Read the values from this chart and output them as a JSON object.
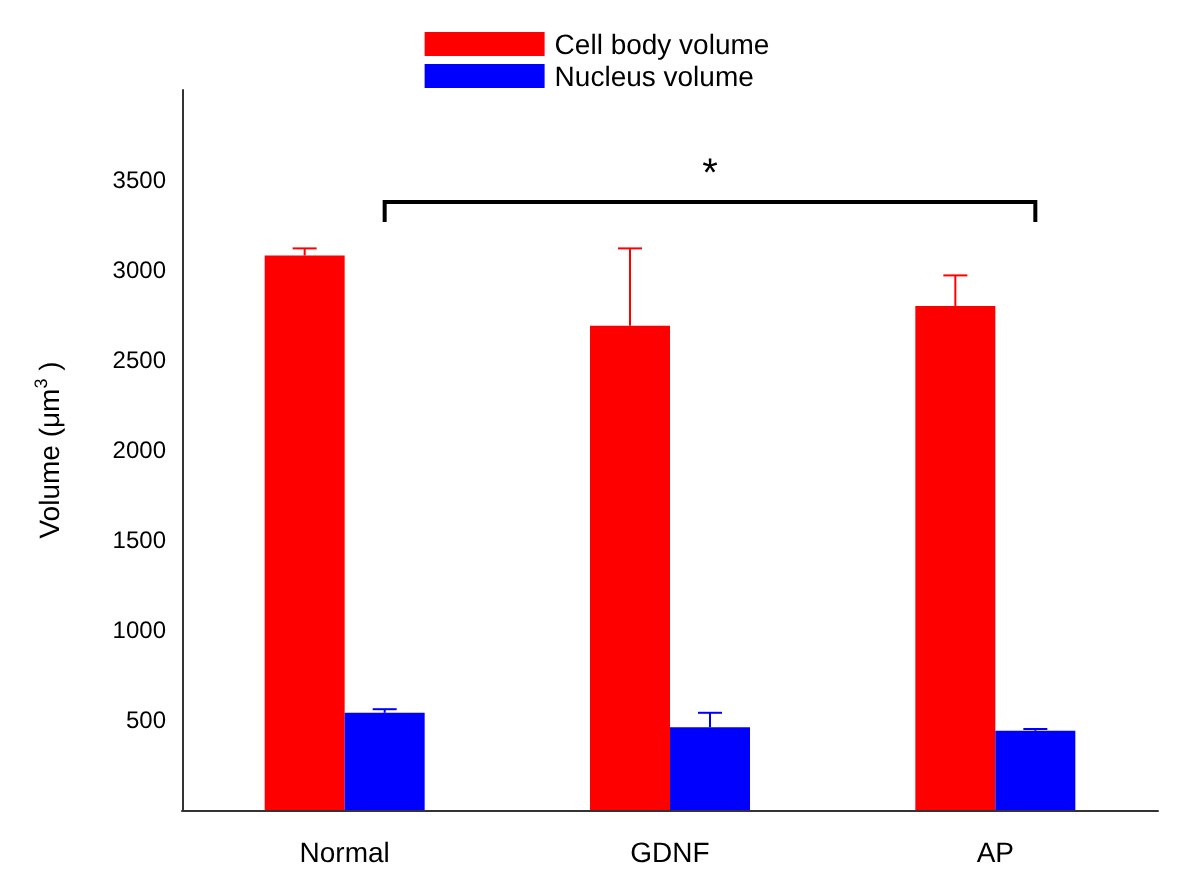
{
  "chart_data": {
    "type": "bar",
    "ylabel": "Volume (μm$^{3}$ )",
    "categories": [
      "Normal",
      "GDNF",
      "AP"
    ],
    "series": [
      {
        "name": "Cell body volume",
        "color": "#ff0000",
        "values": [
          3080,
          2690,
          2800
        ],
        "errors": [
          40,
          430,
          170
        ]
      },
      {
        "name": "Nucleus volume",
        "color": "#0000ff",
        "values": [
          540,
          460,
          440
        ],
        "errors": [
          20,
          80,
          10
        ]
      }
    ],
    "ylim": [
      0,
      4000
    ],
    "yticks": [
      500,
      1000,
      1500,
      2000,
      2500,
      3000,
      3500
    ],
    "legend": "top",
    "grid": false,
    "annotations": [
      "*"
    ]
  }
}
